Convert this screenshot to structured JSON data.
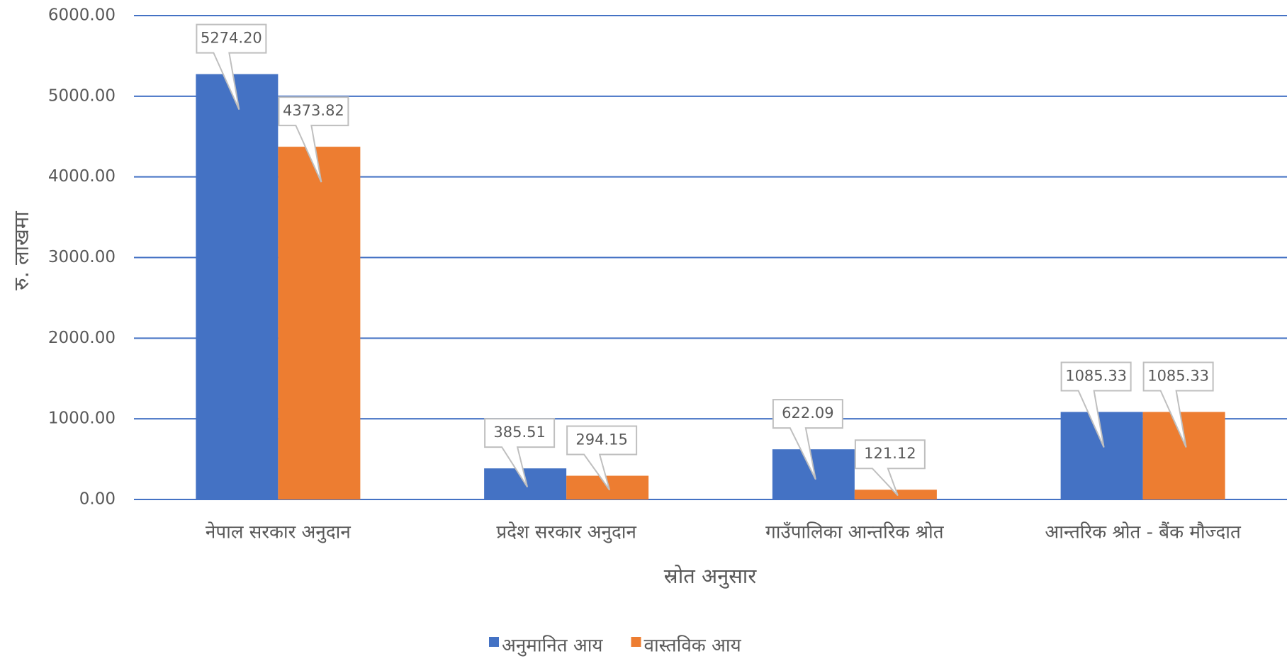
{
  "chart_data": {
    "type": "bar",
    "categories": [
      "नेपाल सरकार अनुदान",
      "प्रदेश सरकार अनुदान",
      "गाउँपालिका आन्तरिक श्रोत",
      "आन्तरिक श्रोत - बैंक मौज्दात"
    ],
    "series": [
      {
        "name": "अनुमानित आय",
        "color": "#4472c4",
        "values": [
          5274.2,
          385.51,
          622.09,
          1085.33
        ],
        "value_labels": [
          "5274.20",
          "385.51",
          "622.09",
          "1085.33"
        ]
      },
      {
        "name": "वास्तविक आय",
        "color": "#ed7d31",
        "values": [
          4373.82,
          294.15,
          121.12,
          1085.33
        ],
        "value_labels": [
          "4373.82",
          "294.15",
          "121.12",
          "1085.33"
        ]
      }
    ],
    "x_label": "स्रोत अनुसार",
    "y_label": "रु. लाखमा",
    "ylim": [
      0,
      6000
    ],
    "yticks": [
      {
        "value": 0,
        "label": "0.00"
      },
      {
        "value": 1000,
        "label": "1000.00"
      },
      {
        "value": 2000,
        "label": "2000.00"
      },
      {
        "value": 3000,
        "label": "3000.00"
      },
      {
        "value": 4000,
        "label": "4000.00"
      },
      {
        "value": 5000,
        "label": "5000.00"
      },
      {
        "value": 6000,
        "label": "6000.00"
      }
    ],
    "grid": true,
    "legend": "bottom"
  }
}
